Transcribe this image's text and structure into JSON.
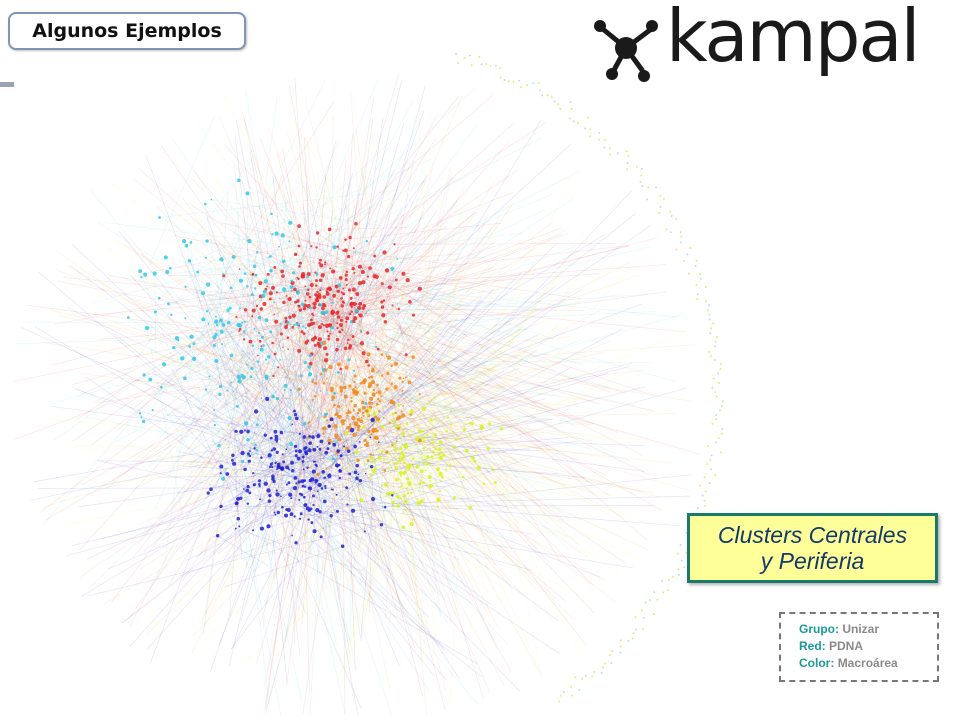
{
  "slide": {
    "title": "Algunos Ejemplos",
    "logo": {
      "text": "kampal",
      "icon": "network-dots-icon"
    },
    "callout": {
      "line1": "Clusters Centrales",
      "line2": "y Periferia"
    },
    "legend": [
      {
        "key": "Grupo",
        "value": "Unizar"
      },
      {
        "key": "Red",
        "value": "PDNA"
      },
      {
        "key": "Color",
        "value": "Macroárea"
      }
    ]
  },
  "colors": {
    "red": "#e8262a",
    "cyan": "#33c9e6",
    "blue": "#1d1fd1",
    "orange": "#f08a1c",
    "yellow": "#d6f51f",
    "callout_fill": "#ffff99",
    "callout_border": "#1a7a6a",
    "legend_key": "#1a9a9a"
  }
}
